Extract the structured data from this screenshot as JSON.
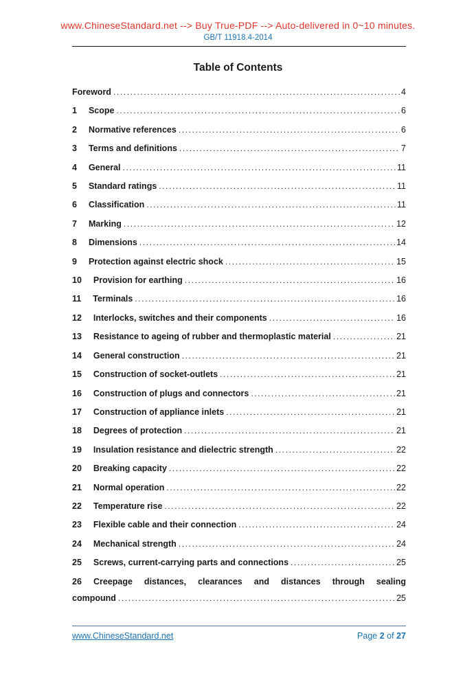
{
  "header": {
    "promo": "www.ChineseStandard.net --> Buy True-PDF --> Auto-delivered in 0~10 minutes.",
    "standard_code": "GB/T 11918.4-2014"
  },
  "toc": {
    "heading": "Table of Contents",
    "entries": [
      {
        "num": "",
        "title": "Foreword",
        "page": "4"
      },
      {
        "num": "1",
        "title": "Scope",
        "page": "6"
      },
      {
        "num": "2",
        "title": "Normative references",
        "page": "6"
      },
      {
        "num": "3",
        "title": "Terms and definitions",
        "page": "7"
      },
      {
        "num": "4",
        "title": "General",
        "page": "11"
      },
      {
        "num": "5",
        "title": "Standard ratings",
        "page": "11"
      },
      {
        "num": "6",
        "title": "Classification",
        "page": "11"
      },
      {
        "num": "7",
        "title": "Marking",
        "page": "12"
      },
      {
        "num": "8",
        "title": "Dimensions",
        "page": "14"
      },
      {
        "num": "9",
        "title": "Protection against electric shock",
        "page": "15"
      },
      {
        "num": "10",
        "title": "Provision for earthing",
        "page": "16"
      },
      {
        "num": "11",
        "title": "Terminals",
        "page": "16"
      },
      {
        "num": "12",
        "title": "Interlocks, switches and their components",
        "page": "16"
      },
      {
        "num": "13",
        "title": "Resistance to ageing of rubber and thermoplastic material",
        "page": "21"
      },
      {
        "num": "14",
        "title": "General construction",
        "page": "21"
      },
      {
        "num": "15",
        "title": "Construction of socket-outlets",
        "page": "21"
      },
      {
        "num": "16",
        "title": "Construction of plugs and connectors",
        "page": "21"
      },
      {
        "num": "17",
        "title": "Construction of appliance inlets",
        "page": "21"
      },
      {
        "num": "18",
        "title": "Degrees of protection",
        "page": "21"
      },
      {
        "num": "19",
        "title": "Insulation resistance and dielectric strength",
        "page": "22"
      },
      {
        "num": "20",
        "title": "Breaking capacity",
        "page": "22"
      },
      {
        "num": "21",
        "title": "Normal operation",
        "page": "22"
      },
      {
        "num": "22",
        "title": "Temperature rise",
        "page": "22"
      },
      {
        "num": "23",
        "title": "Flexible cable and their connection",
        "page": "24"
      },
      {
        "num": "24",
        "title": "Mechanical strength",
        "page": "24"
      },
      {
        "num": "25",
        "title": "Screws, current-carrying parts and connections",
        "page": "25"
      },
      {
        "num": "26",
        "title_line1": "Creepage distances, clearances and distances through sealing",
        "title_line2": "compound",
        "page": "25"
      }
    ]
  },
  "footer": {
    "site": "www.ChineseStandard.net",
    "page_word": "Page",
    "page_number": "2",
    "of_word": "of",
    "total_pages": "27"
  },
  "colors": {
    "promo_red": "#e0362c",
    "link_blue": "#1c73b5",
    "header_rule": "#1a1a1a",
    "footer_rule": "#4d7096"
  }
}
